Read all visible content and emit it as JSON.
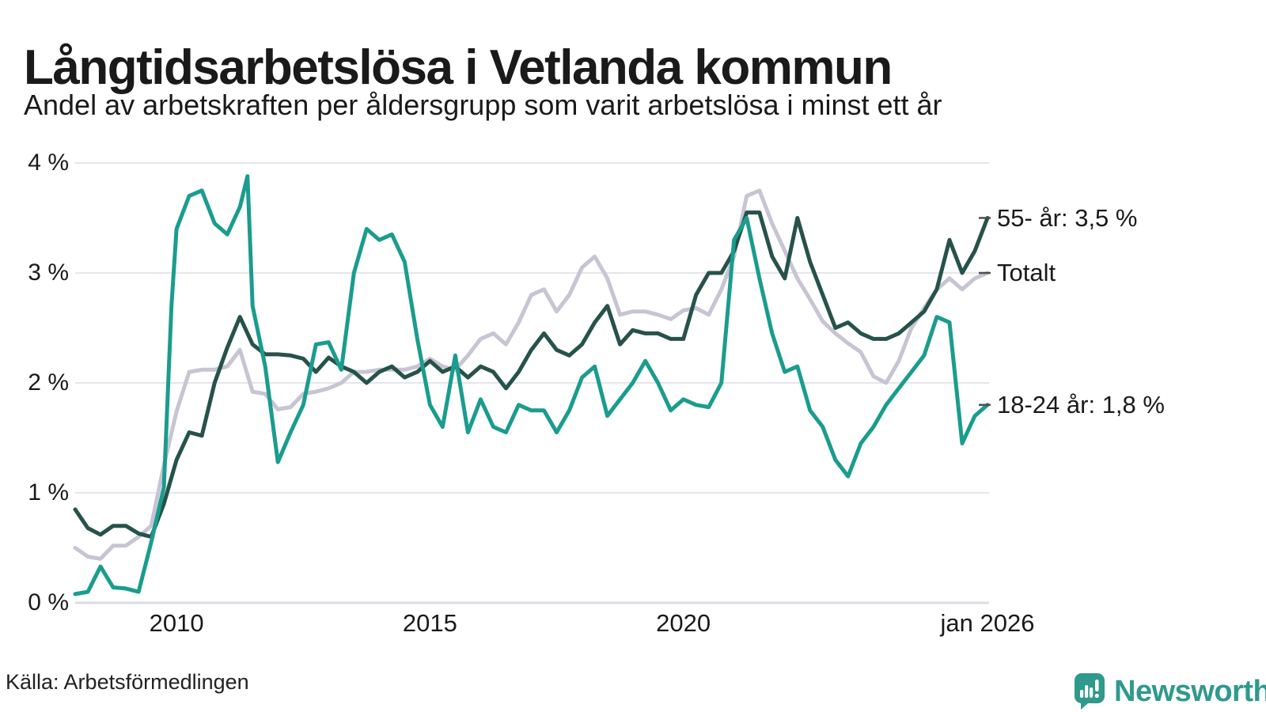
{
  "header": {
    "title": "Långtidsarbetslösa i Vetlanda kommun",
    "subtitle": "Andel av arbetskraften per åldersgrupp som varit arbetslösa i minst ett år"
  },
  "footer": {
    "source": "Källa: Arbetsförmedlingen",
    "brand": "Newsworthy"
  },
  "colors": {
    "age55": "#26524a",
    "total": "#c7c4d4",
    "age1824": "#1a9c8e",
    "grid": "#e6e5eb",
    "baseline": "#dcdbe2",
    "text": "#1a1a1a",
    "leader_dash": "#4d4d4d",
    "brand_teal": "#2f998c"
  },
  "chart_data": {
    "type": "line",
    "title": "Långtidsarbetslösa i Vetlanda kommun",
    "subtitle": "Andel av arbetskraften per åldersgrupp som varit arbetslösa i minst ett år",
    "source": "Källa: Arbetsförmedlingen",
    "unit": "% av arbetskraften",
    "grid": true,
    "legend_position": "right-end-labels",
    "x_axis": {
      "range": [
        2008,
        2026
      ],
      "ticks": [
        {
          "value": 2010,
          "label": "2010"
        },
        {
          "value": 2015,
          "label": "2015"
        },
        {
          "value": 2020,
          "label": "2020"
        },
        {
          "value": 2026,
          "label": "jan 2026"
        }
      ]
    },
    "y_axis": {
      "range": [
        0,
        4
      ],
      "ticks": [
        {
          "value": 0,
          "label": "0 %"
        },
        {
          "value": 1,
          "label": "1 %"
        },
        {
          "value": 2,
          "label": "2 %"
        },
        {
          "value": 3,
          "label": "3 %"
        },
        {
          "value": 4,
          "label": "4 %"
        }
      ]
    },
    "series": [
      {
        "name": "55- år",
        "label": "55- år: 3,5 %",
        "color": "#26524a",
        "end_value": 3.5,
        "z": 1,
        "x_start": 2008,
        "x_step": 0.25,
        "values": [
          0.85,
          0.68,
          0.62,
          0.7,
          0.7,
          0.63,
          0.6,
          0.9,
          1.3,
          1.55,
          1.52,
          2,
          2.32,
          2.6,
          2.35,
          2.26,
          2.26,
          2.25,
          2.22,
          2.1,
          2.23,
          2.15,
          2.1,
          2,
          2.1,
          2.15,
          2.05,
          2.1,
          2.2,
          2.1,
          2.15,
          2.05,
          2.15,
          2.1,
          1.95,
          2.1,
          2.3,
          2.45,
          2.3,
          2.25,
          2.35,
          2.55,
          2.7,
          2.35,
          2.48,
          2.45,
          2.45,
          2.4,
          2.4,
          2.8,
          3,
          3,
          3.2,
          3.55,
          3.55,
          3.15,
          2.95,
          3.5,
          3.1,
          2.8,
          2.5,
          2.55,
          2.45,
          2.4,
          2.4,
          2.45,
          2.55,
          2.65,
          2.85,
          3.3,
          3,
          3.2,
          3.5
        ]
      },
      {
        "name": "Totalt",
        "label": "Totalt",
        "color": "#c7c4d4",
        "end_value": 3.0,
        "z": 0,
        "x_start": 2008,
        "x_step": 0.25,
        "values": [
          0.5,
          0.42,
          0.4,
          0.52,
          0.52,
          0.6,
          0.7,
          1.25,
          1.74,
          2.1,
          2.12,
          2.12,
          2.15,
          2.3,
          1.92,
          1.9,
          1.76,
          1.78,
          1.9,
          1.92,
          1.95,
          2,
          2.1,
          2.1,
          2.12,
          2.12,
          2.12,
          2.15,
          2.22,
          2.15,
          2.12,
          2.25,
          2.4,
          2.45,
          2.35,
          2.55,
          2.8,
          2.85,
          2.65,
          2.8,
          3.05,
          3.15,
          2.95,
          2.62,
          2.65,
          2.65,
          2.62,
          2.58,
          2.66,
          2.68,
          2.62,
          2.85,
          3.15,
          3.7,
          3.75,
          3.45,
          3.2,
          2.95,
          2.76,
          2.56,
          2.45,
          2.36,
          2.28,
          2.06,
          2,
          2.2,
          2.5,
          2.68,
          2.85,
          2.95,
          2.85,
          2.95,
          3
        ]
      },
      {
        "name": "18-24 år",
        "label": "18-24 år: 1,8 %",
        "color": "#1a9c8e",
        "end_value": 1.8,
        "z": 2,
        "x": [
          2008,
          2008.25,
          2008.5,
          2008.75,
          2009,
          2009.25,
          2009.5,
          2009.75,
          2009.9,
          2010,
          2010.25,
          2010.5,
          2010.75,
          2011,
          2011.25,
          2011.4,
          2011.5,
          2011.75,
          2012,
          2012.25,
          2012.5,
          2012.75,
          2013,
          2013.25,
          2013.5,
          2013.75,
          2014,
          2014.25,
          2014.5,
          2014.75,
          2015,
          2015.25,
          2015.5,
          2015.75,
          2016,
          2016.25,
          2016.5,
          2016.75,
          2017,
          2017.25,
          2017.5,
          2017.75,
          2018,
          2018.25,
          2018.5,
          2018.75,
          2019,
          2019.25,
          2019.5,
          2019.75,
          2020,
          2020.25,
          2020.5,
          2020.75,
          2021,
          2021.25,
          2021.5,
          2021.75,
          2022,
          2022.25,
          2022.5,
          2022.75,
          2023,
          2023.25,
          2023.5,
          2023.75,
          2024,
          2024.25,
          2024.5,
          2024.75,
          2025,
          2025.25,
          2025.5,
          2025.75,
          2026
        ],
        "values": [
          0.08,
          0.1,
          0.33,
          0.14,
          0.13,
          0.1,
          0.55,
          1.05,
          2.7,
          3.4,
          3.7,
          3.75,
          3.45,
          3.35,
          3.6,
          3.88,
          2.7,
          2.15,
          1.28,
          1.55,
          1.8,
          2.35,
          2.37,
          2.12,
          3,
          3.4,
          3.3,
          3.35,
          3.1,
          2.4,
          1.8,
          1.6,
          2.25,
          1.55,
          1.85,
          1.6,
          1.55,
          1.8,
          1.75,
          1.75,
          1.55,
          1.75,
          2.05,
          2.15,
          1.7,
          1.85,
          2,
          2.2,
          2,
          1.75,
          1.85,
          1.8,
          1.78,
          2,
          3.3,
          3.5,
          2.95,
          2.45,
          2.1,
          2.15,
          1.75,
          1.6,
          1.3,
          1.15,
          1.45,
          1.6,
          1.8,
          1.95,
          2.1,
          2.25,
          2.6,
          2.55,
          1.45,
          1.7,
          1.8
        ]
      }
    ]
  }
}
